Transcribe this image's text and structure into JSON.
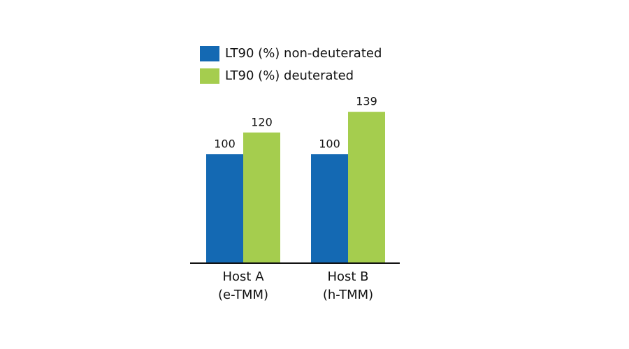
{
  "chart_data": {
    "type": "bar",
    "categories": [
      [
        "Host A",
        "(e-TMM)"
      ],
      [
        "Host B",
        "(h-TMM)"
      ]
    ],
    "series": [
      {
        "name": "LT90 (%) non-deuterated",
        "color": "#1469b3",
        "values": [
          100,
          100
        ]
      },
      {
        "name": "LT90 (%) deuterated",
        "color": "#a5cd4e",
        "values": [
          120,
          139
        ]
      }
    ],
    "legend": "top"
  }
}
